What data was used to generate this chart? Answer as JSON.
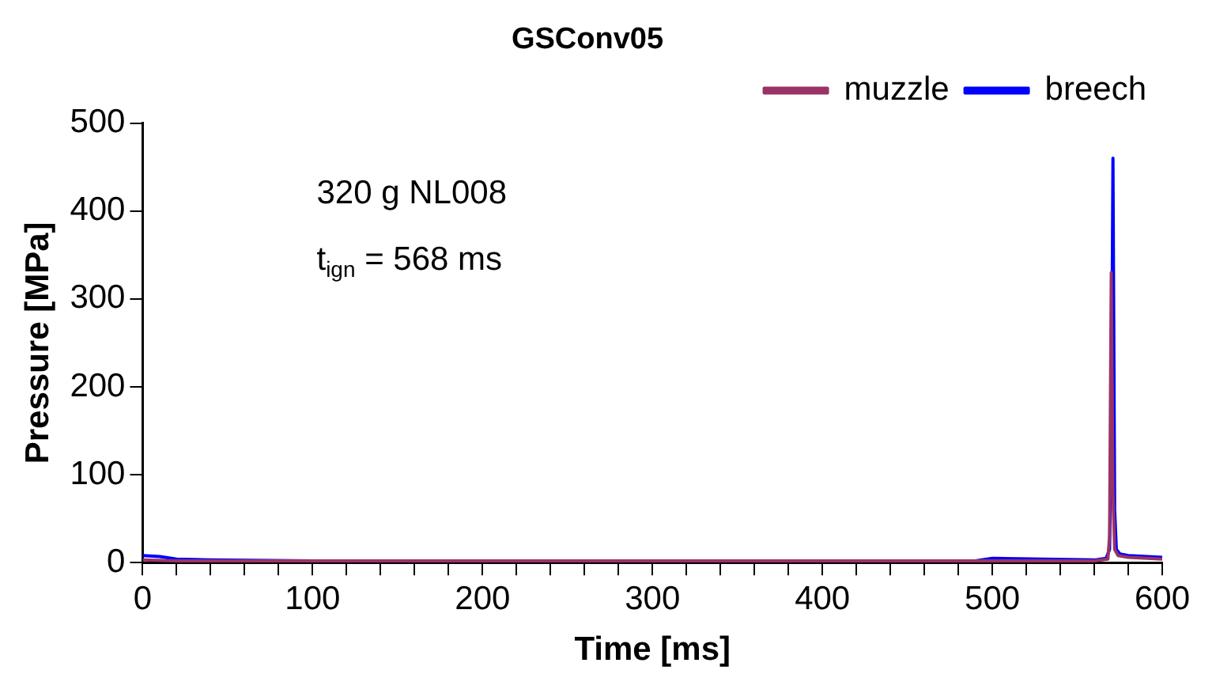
{
  "chart_data": {
    "type": "line",
    "title": "GSConv05",
    "xlabel": "Time [ms]",
    "ylabel": "Pressure [MPa]",
    "xlim": [
      0,
      600
    ],
    "ylim": [
      0,
      500
    ],
    "xticks": [
      0,
      {
        "value": 20,
        "label": null
      },
      {
        "value": 40,
        "label": null
      },
      {
        "value": 60,
        "label": null
      },
      {
        "value": 80,
        "label": null
      },
      100,
      {
        "value": 120,
        "label": null
      },
      {
        "value": 140,
        "label": null
      },
      {
        "value": 160,
        "label": null
      },
      {
        "value": 180,
        "label": null
      },
      200,
      {
        "value": 220,
        "label": null
      },
      {
        "value": 240,
        "label": null
      },
      {
        "value": 260,
        "label": null
      },
      {
        "value": 280,
        "label": null
      },
      300,
      {
        "value": 320,
        "label": null
      },
      {
        "value": 340,
        "label": null
      },
      {
        "value": 360,
        "label": null
      },
      {
        "value": 380,
        "label": null
      },
      400,
      {
        "value": 420,
        "label": null
      },
      {
        "value": 440,
        "label": null
      },
      {
        "value": 460,
        "label": null
      },
      {
        "value": 480,
        "label": null
      },
      500,
      {
        "value": 520,
        "label": null
      },
      {
        "value": 540,
        "label": null
      },
      {
        "value": 560,
        "label": null
      },
      {
        "value": 580,
        "label": null
      },
      600
    ],
    "yticks": [
      0,
      100,
      200,
      300,
      400,
      500
    ],
    "annotations": [
      "320 g NL008",
      "t$_{ign}$ = 568 ms"
    ],
    "legend": "top right",
    "grid": false,
    "marker": "none",
    "line_style": "solid",
    "series": [
      {
        "name": "breech",
        "color": "#0000ff",
        "x": [
          0,
          10,
          20,
          40,
          100,
          300,
          490,
          500,
          560,
          567,
          569,
          570,
          571,
          572,
          573,
          575,
          580,
          600
        ],
        "values": [
          8,
          7,
          4,
          3,
          2,
          2,
          2,
          5,
          3,
          5,
          15,
          120,
          460,
          60,
          15,
          10,
          8,
          6
        ]
      },
      {
        "name": "muzzle",
        "color": "#993366",
        "x": [
          0,
          20,
          100,
          300,
          500,
          560,
          568,
          569,
          570,
          571,
          572,
          574,
          580,
          600
        ],
        "values": [
          3,
          2,
          2,
          2,
          2,
          2,
          4,
          30,
          330,
          80,
          15,
          8,
          6,
          4
        ]
      }
    ]
  }
}
